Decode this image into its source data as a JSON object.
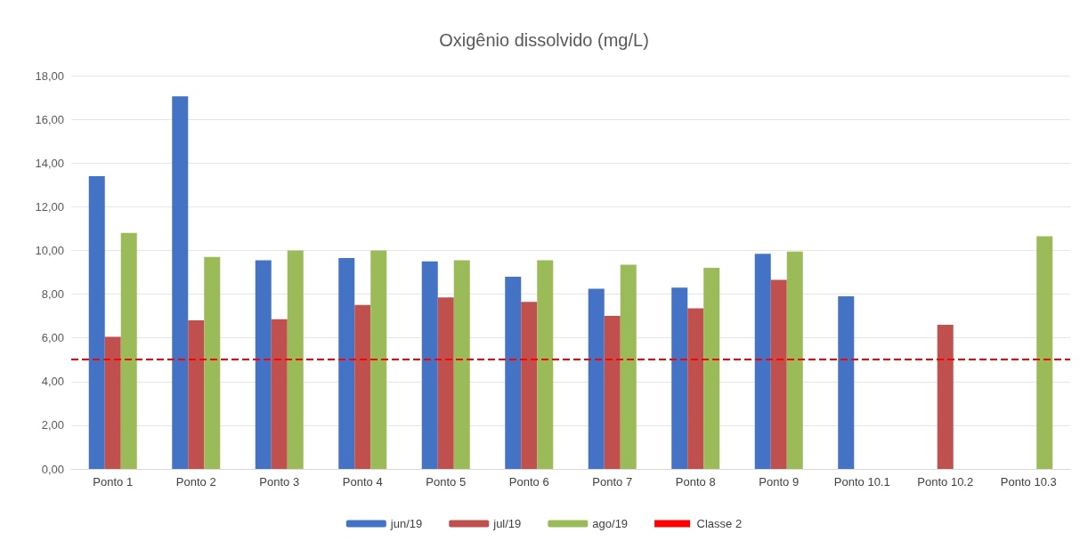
{
  "chart_data": {
    "type": "bar",
    "title": "Oxigênio dissolvido (mg/L)",
    "categories": [
      "Ponto 1",
      "Ponto 2",
      "Ponto 3",
      "Ponto 4",
      "Ponto 5",
      "Ponto 6",
      "Ponto 7",
      "Ponto 8",
      "Ponto 9",
      "Ponto 10.1",
      "Ponto 10.2",
      "Ponto 10.3"
    ],
    "series": [
      {
        "name": "jun/19",
        "color": "#4472c4",
        "values": [
          13.4,
          17.05,
          9.55,
          9.65,
          9.5,
          8.8,
          8.25,
          8.3,
          9.85,
          7.9,
          null,
          null
        ]
      },
      {
        "name": "jul/19",
        "color": "#c0504d",
        "values": [
          6.05,
          6.8,
          6.85,
          7.5,
          7.85,
          7.65,
          7.0,
          7.35,
          8.65,
          null,
          6.6,
          null
        ]
      },
      {
        "name": "ago/19",
        "color": "#9bbb59",
        "values": [
          10.8,
          9.7,
          10.0,
          10.0,
          9.55,
          9.55,
          9.35,
          9.2,
          9.95,
          null,
          null,
          10.65
        ]
      }
    ],
    "ylim": [
      0,
      18
    ],
    "yticks": [
      {
        "value": 0,
        "label": "0,00"
      },
      {
        "value": 2,
        "label": "2,00"
      },
      {
        "value": 4,
        "label": "4,00"
      },
      {
        "value": 6,
        "label": "6,00"
      },
      {
        "value": 8,
        "label": "8,00"
      },
      {
        "value": 10,
        "label": "10,00"
      },
      {
        "value": 12,
        "label": "12,00"
      },
      {
        "value": 14,
        "label": "14,00"
      },
      {
        "value": 16,
        "label": "16,00"
      },
      {
        "value": 18,
        "label": "18,00"
      }
    ],
    "ref_lines": [
      {
        "axis": "y",
        "value": 5,
        "label": "Classe 2",
        "color": "#ff0000",
        "line_style": "dashed"
      }
    ],
    "grid": "y",
    "legend": "bottom"
  }
}
